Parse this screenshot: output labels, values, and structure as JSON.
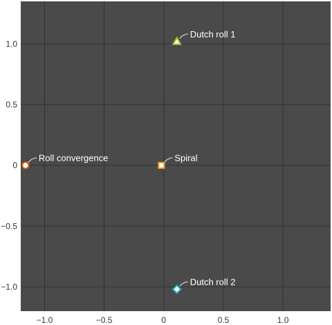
{
  "chart_data": {
    "type": "scatter",
    "title": "",
    "xlabel": "",
    "ylabel": "",
    "xlim": [
      -1.2,
      1.4
    ],
    "ylim": [
      -1.2,
      1.35
    ],
    "grid": true,
    "background": "#4a4a4a",
    "x_ticks": [
      {
        "value": -1.0,
        "label": "−1.0"
      },
      {
        "value": -0.5,
        "label": "−0.5"
      },
      {
        "value": 0,
        "label": "0"
      },
      {
        "value": 0.5,
        "label": "0.5"
      },
      {
        "value": 1.0,
        "label": "1.0"
      }
    ],
    "y_ticks": [
      {
        "value": 1.0,
        "label": "1.0"
      },
      {
        "value": 0.5,
        "label": "0.5"
      },
      {
        "value": 0,
        "label": "0"
      },
      {
        "value": -0.5,
        "label": "−0.5"
      },
      {
        "value": -1.0,
        "label": "−1.0"
      }
    ],
    "points": [
      {
        "x": -1.16,
        "y": 0.0,
        "label": "Roll convergence",
        "marker": "circle",
        "color": "#e0641a"
      },
      {
        "x": -0.02,
        "y": 0.0,
        "label": "Spiral",
        "marker": "square",
        "color": "#f0a020"
      },
      {
        "x": 0.11,
        "y": 1.02,
        "label": "Dutch roll 1",
        "marker": "triangle",
        "color": "#a8c020"
      },
      {
        "x": 0.11,
        "y": -1.02,
        "label": "Dutch roll 2",
        "marker": "diamond",
        "color": "#20b8c8"
      }
    ]
  }
}
